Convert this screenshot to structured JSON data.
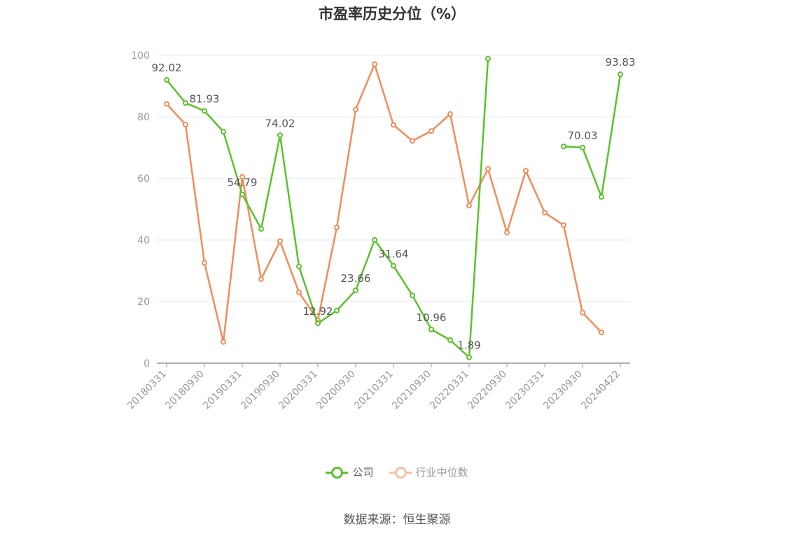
{
  "chart_data": {
    "type": "line",
    "title": "市盈率历史分位（%）",
    "ylim": [
      0,
      100
    ],
    "yticks": [
      0,
      20,
      40,
      60,
      80,
      100
    ],
    "grid": true,
    "legend_position": "bottom",
    "x_tick_labels": [
      "20180331",
      "20180930",
      "20190331",
      "20190930",
      "20200331",
      "20200930",
      "20210331",
      "20210930",
      "20220331",
      "20220930",
      "20230331",
      "20230930",
      "20240422"
    ],
    "x": [
      "20180331",
      "20180630",
      "20180930",
      "20181231",
      "20190331",
      "20190630",
      "20190930",
      "20191231",
      "20200331",
      "20200630",
      "20200930",
      "20201231",
      "20210331",
      "20210630",
      "20210930",
      "20211231",
      "20220331",
      "20220630",
      "20220930",
      "20221231",
      "20230331",
      "20230630",
      "20230930",
      "20231231",
      "20240422"
    ],
    "series": [
      {
        "name": "公司",
        "color": "#5bc22b",
        "values": [
          92.02,
          84.5,
          81.93,
          75.2,
          54.79,
          43.6,
          74.02,
          31.4,
          12.92,
          17.1,
          23.66,
          40.0,
          31.64,
          22.0,
          10.96,
          7.5,
          1.89,
          98.9,
          null,
          null,
          null,
          70.4,
          70.03,
          54.0,
          93.83
        ],
        "labels": [
          {
            "index": 0,
            "text": "92.02"
          },
          {
            "index": 2,
            "text": "81.93"
          },
          {
            "index": 4,
            "text": "54.79"
          },
          {
            "index": 6,
            "text": "74.02"
          },
          {
            "index": 8,
            "text": "12.92"
          },
          {
            "index": 10,
            "text": "23.66"
          },
          {
            "index": 12,
            "text": "31.64"
          },
          {
            "index": 14,
            "text": "10.96"
          },
          {
            "index": 16,
            "text": "1.89"
          },
          {
            "index": 22,
            "text": "70.03"
          },
          {
            "index": 24,
            "text": "93.83"
          }
        ]
      },
      {
        "name": "行业中位数",
        "color": "#f28c5a",
        "values": [
          84.2,
          77.5,
          32.6,
          6.9,
          60.5,
          27.3,
          39.6,
          23.0,
          14.0,
          44.1,
          82.4,
          97.1,
          77.4,
          72.2,
          75.4,
          80.9,
          51.2,
          63.1,
          42.4,
          62.5,
          48.9,
          44.8,
          16.4,
          10.0,
          null
        ]
      }
    ]
  },
  "legend": {
    "company_label": "公司",
    "industry_label": "行业中位数",
    "company_color": "#5bc22b",
    "industry_color": "#f28c5a"
  },
  "source_text": "数据来源：恒生聚源"
}
